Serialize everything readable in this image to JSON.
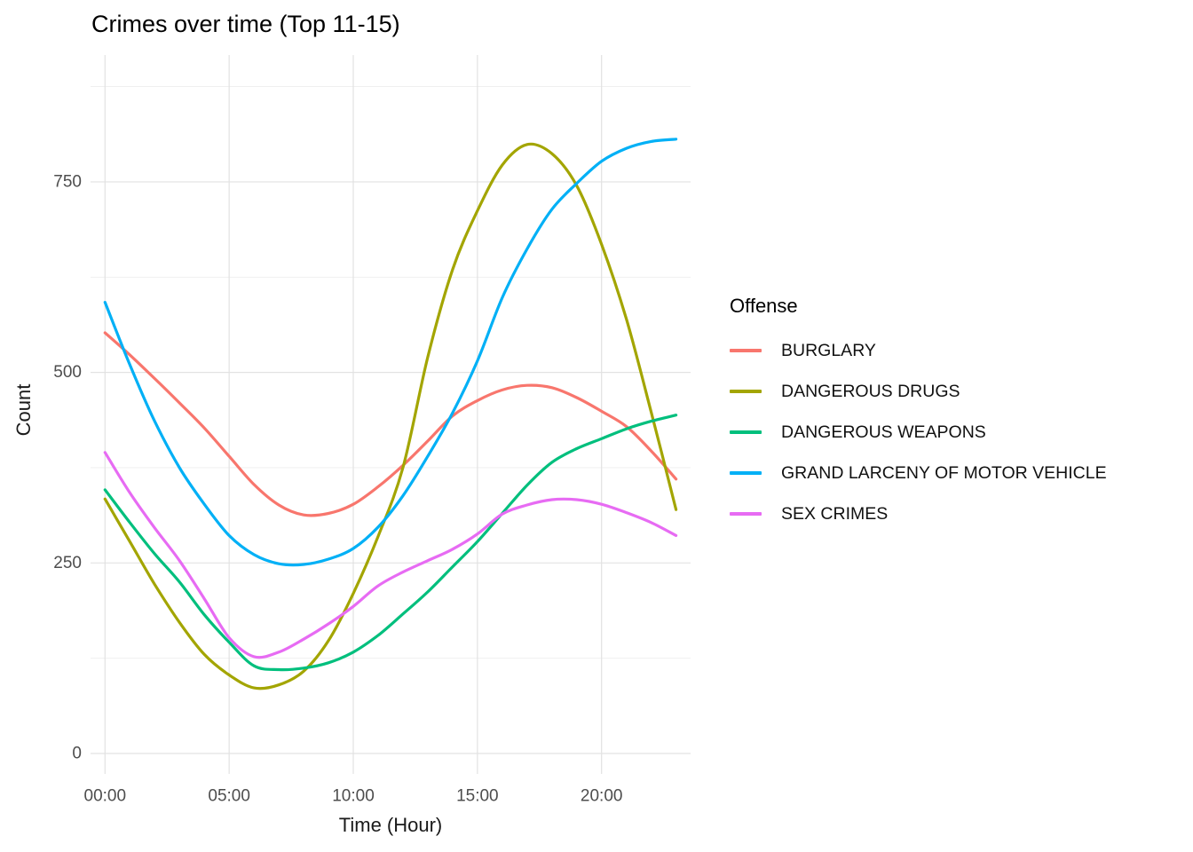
{
  "chart_data": {
    "type": "line",
    "title": "Crimes over time (Top 11-15)",
    "xlabel": "Time (Hour)",
    "ylabel": "Count",
    "legend_title": "Offense",
    "legend_position": "right",
    "grid": "on",
    "x_hours": [
      0,
      1,
      2,
      3,
      4,
      5,
      6,
      7,
      8,
      9,
      10,
      11,
      12,
      13,
      14,
      15,
      16,
      17,
      18,
      19,
      20,
      21,
      22,
      23
    ],
    "xticks": {
      "values": [
        0,
        5,
        10,
        15,
        20
      ],
      "labels": [
        "00:00",
        "05:00",
        "10:00",
        "15:00",
        "20:00"
      ]
    },
    "yticks": [
      0,
      250,
      500,
      750
    ],
    "y_minor_gridlines": [
      125,
      375,
      625,
      875
    ],
    "ylim": [
      -27,
      916
    ],
    "xlim": [
      -0.58,
      23.6
    ],
    "series": [
      {
        "name": "BURGLARY",
        "color": "#F8766D",
        "values": [
          552,
          523,
          492,
          460,
          427,
          390,
          353,
          326,
          313,
          315,
          327,
          350,
          378,
          410,
          443,
          463,
          477,
          483,
          480,
          467,
          449,
          429,
          397,
          360
        ]
      },
      {
        "name": "DANGEROUS DRUGS",
        "color": "#A3A500",
        "values": [
          334,
          278,
          222,
          172,
          130,
          103,
          86,
          90,
          108,
          148,
          210,
          285,
          375,
          520,
          635,
          712,
          772,
          799,
          787,
          745,
          668,
          570,
          448,
          320
        ]
      },
      {
        "name": "DANGEROUS WEAPONS",
        "color": "#00BF7D",
        "values": [
          346,
          303,
          262,
          225,
          182,
          146,
          115,
          110,
          112,
          119,
          133,
          155,
          183,
          212,
          245,
          278,
          315,
          352,
          382,
          400,
          413,
          426,
          436,
          444
        ]
      },
      {
        "name": "GRAND LARCENY OF MOTOR VEHICLE",
        "color": "#00B0F6",
        "values": [
          592,
          510,
          436,
          375,
          327,
          286,
          261,
          249,
          248,
          255,
          269,
          297,
          338,
          390,
          447,
          515,
          598,
          662,
          714,
          748,
          777,
          794,
          803,
          806
        ]
      },
      {
        "name": "SEX CRIMES",
        "color": "#E76BF3",
        "values": [
          395,
          342,
          296,
          253,
          203,
          152,
          127,
          133,
          150,
          170,
          193,
          220,
          238,
          253,
          268,
          288,
          314,
          326,
          333,
          333,
          327,
          316,
          303,
          286
        ]
      }
    ],
    "style_colors": {
      "axis_text": "#4d4d4d",
      "grid_major": "#e2e2e2",
      "grid_minor": "#ededed",
      "background": "#ffffff"
    }
  }
}
